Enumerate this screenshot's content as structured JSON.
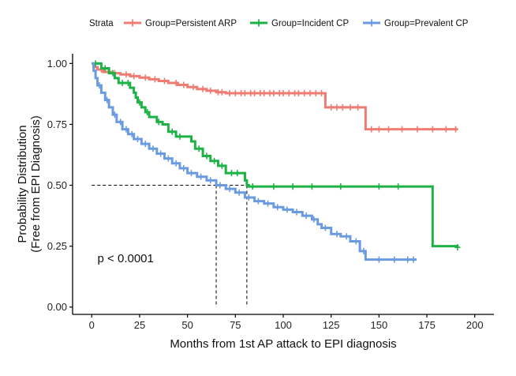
{
  "chart_data": {
    "type": "line",
    "subtype": "kaplan-meier",
    "title": "",
    "xlabel": "Months from 1st AP attack to EPI diagnosis",
    "ylabel_lines": [
      "Probability Distribution",
      "(Free from EPI Diagnosis)"
    ],
    "xlim": [
      -10,
      210
    ],
    "ylim": [
      -0.03,
      1.04
    ],
    "x_ticks": [
      0,
      25,
      50,
      75,
      100,
      125,
      150,
      175,
      200
    ],
    "y_ticks": [
      0.0,
      0.25,
      0.5,
      0.75,
      1.0
    ],
    "y_tick_labels": [
      "0.00",
      "0.25",
      "0.50",
      "0.75",
      "1.00"
    ],
    "legend": {
      "title": "Strata",
      "position": "top",
      "entries": [
        "Group=Persistent ARP",
        "Group=Incident CP",
        "Group=Prevalent CP"
      ]
    },
    "annotations": [
      {
        "text": "p < 0.0001",
        "x": 3,
        "y": 0.2
      }
    ],
    "reference_lines": [
      {
        "from": [
          0,
          0.5
        ],
        "to": [
          81,
          0.5
        ]
      },
      {
        "from": [
          65,
          0.5
        ],
        "to": [
          65,
          0
        ]
      },
      {
        "from": [
          81,
          0.5
        ],
        "to": [
          81,
          0
        ]
      }
    ],
    "series": [
      {
        "name": "Group=Persistent ARP",
        "color": "#EE7C73",
        "steps": [
          [
            0,
            1.0
          ],
          [
            1,
            0.985
          ],
          [
            3,
            0.975
          ],
          [
            6,
            0.965
          ],
          [
            10,
            0.96
          ],
          [
            15,
            0.955
          ],
          [
            20,
            0.948
          ],
          [
            25,
            0.942
          ],
          [
            30,
            0.935
          ],
          [
            35,
            0.928
          ],
          [
            40,
            0.92
          ],
          [
            45,
            0.912
          ],
          [
            50,
            0.903
          ],
          [
            55,
            0.895
          ],
          [
            60,
            0.888
          ],
          [
            65,
            0.882
          ],
          [
            70,
            0.878
          ],
          [
            122,
            0.82
          ],
          [
            143,
            0.73
          ],
          [
            191,
            0.73
          ]
        ],
        "censor_x": [
          5,
          12,
          18,
          22,
          28,
          33,
          38,
          44,
          48,
          53,
          58,
          62,
          66,
          68,
          72,
          75,
          78,
          80,
          83,
          85,
          88,
          90,
          93,
          95,
          98,
          100,
          103,
          106,
          108,
          111,
          114,
          117,
          120,
          125,
          128,
          131,
          135,
          139,
          146,
          150,
          155,
          162,
          170,
          178,
          185,
          190
        ]
      },
      {
        "name": "Group=Incident CP",
        "color": "#1DB245",
        "steps": [
          [
            0,
            1.0
          ],
          [
            5,
            0.98
          ],
          [
            9,
            0.96
          ],
          [
            12,
            0.94
          ],
          [
            14,
            0.92
          ],
          [
            20,
            0.9
          ],
          [
            22,
            0.88
          ],
          [
            23,
            0.86
          ],
          [
            24,
            0.84
          ],
          [
            26,
            0.82
          ],
          [
            28,
            0.8
          ],
          [
            30,
            0.78
          ],
          [
            34,
            0.76
          ],
          [
            37,
            0.75
          ],
          [
            40,
            0.72
          ],
          [
            44,
            0.7
          ],
          [
            52,
            0.68
          ],
          [
            54,
            0.65
          ],
          [
            58,
            0.62
          ],
          [
            62,
            0.6
          ],
          [
            66,
            0.58
          ],
          [
            70,
            0.55
          ],
          [
            80,
            0.52
          ],
          [
            81,
            0.5
          ],
          [
            82,
            0.495
          ],
          [
            178,
            0.25
          ],
          [
            191,
            0.245
          ]
        ],
        "censor_x": [
          2,
          7,
          11,
          16,
          19,
          25,
          29,
          35,
          42,
          46,
          56,
          60,
          64,
          68,
          73,
          76,
          84,
          95,
          105,
          115,
          130,
          150,
          160,
          191
        ]
      },
      {
        "name": "Group=Prevalent CP",
        "color": "#6A9BE0",
        "steps": [
          [
            0,
            1.0
          ],
          [
            1,
            0.97
          ],
          [
            2,
            0.94
          ],
          [
            3,
            0.91
          ],
          [
            5,
            0.88
          ],
          [
            7,
            0.85
          ],
          [
            9,
            0.82
          ],
          [
            11,
            0.79
          ],
          [
            13,
            0.76
          ],
          [
            16,
            0.73
          ],
          [
            19,
            0.71
          ],
          [
            22,
            0.69
          ],
          [
            26,
            0.67
          ],
          [
            30,
            0.65
          ],
          [
            34,
            0.63
          ],
          [
            38,
            0.61
          ],
          [
            42,
            0.59
          ],
          [
            46,
            0.57
          ],
          [
            50,
            0.55
          ],
          [
            55,
            0.535
          ],
          [
            60,
            0.52
          ],
          [
            65,
            0.5
          ],
          [
            70,
            0.485
          ],
          [
            75,
            0.47
          ],
          [
            80,
            0.45
          ],
          [
            85,
            0.435
          ],
          [
            90,
            0.425
          ],
          [
            95,
            0.41
          ],
          [
            100,
            0.4
          ],
          [
            105,
            0.39
          ],
          [
            110,
            0.375
          ],
          [
            115,
            0.36
          ],
          [
            118,
            0.34
          ],
          [
            120,
            0.325
          ],
          [
            125,
            0.3
          ],
          [
            130,
            0.29
          ],
          [
            135,
            0.27
          ],
          [
            140,
            0.23
          ],
          [
            143,
            0.195
          ],
          [
            169,
            0.19
          ]
        ],
        "censor_x": [
          4,
          8,
          12,
          15,
          18,
          21,
          24,
          28,
          32,
          36,
          40,
          44,
          48,
          52,
          57,
          62,
          67,
          72,
          77,
          82,
          87,
          92,
          97,
          102,
          107,
          112,
          116,
          122,
          128,
          133,
          138,
          142,
          150,
          158,
          165,
          168
        ]
      }
    ]
  }
}
